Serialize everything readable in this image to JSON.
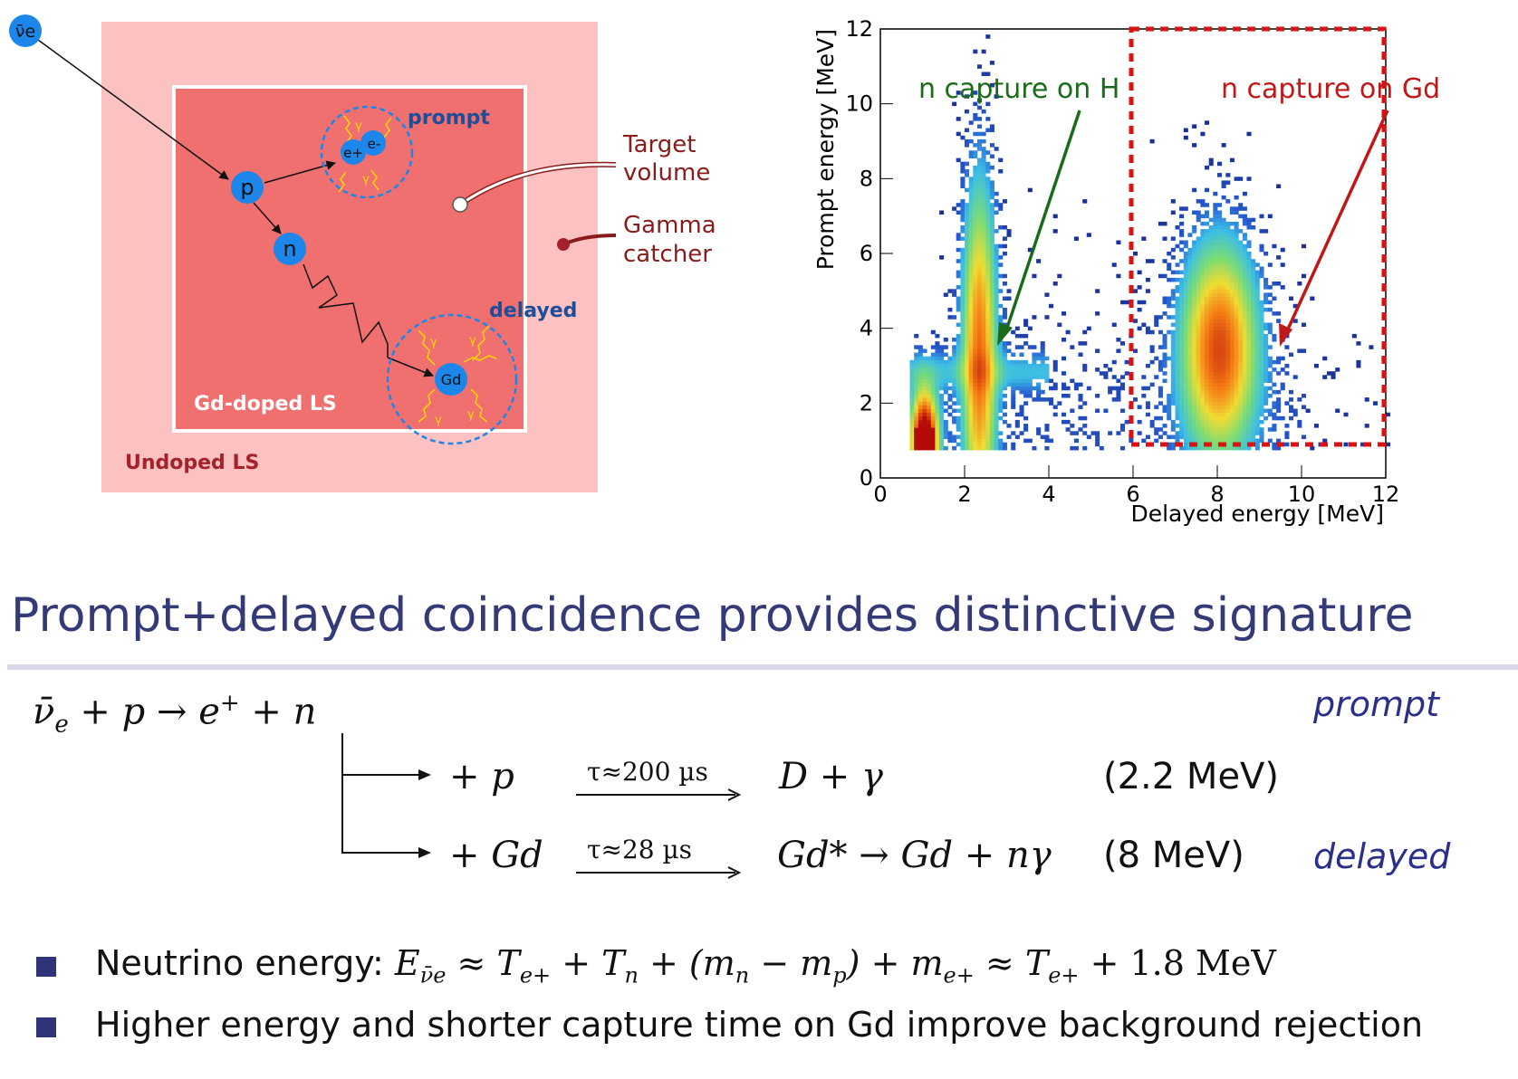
{
  "diagram": {
    "antineutrino_label": "ν̄e",
    "proton_label": "p",
    "neutron_label": "n",
    "gd_label": "Gd",
    "positron_label": "e+",
    "electron_label": "e-",
    "gamma_symbol": "γ",
    "prompt_label": "prompt",
    "delayed_label": "delayed",
    "gd_doped_label": "Gd-doped LS",
    "undoped_label": "Undoped LS",
    "target_volume_label_1": "Target",
    "target_volume_label_2": "volume",
    "gamma_catcher_label_1": "Gamma",
    "gamma_catcher_label_2": "catcher",
    "colors": {
      "outer_region": "#fcc1c1",
      "inner_region": "#f06f6f",
      "particle": "#1c86ea",
      "label_blue": "#1f4e99",
      "label_darkred": "#8a1b1b"
    }
  },
  "plot": {
    "x_label": "Delayed energy [MeV]",
    "y_label": "Prompt energy [MeV]",
    "annotation_h": "n capture on H",
    "annotation_gd": "n capture on Gd",
    "x_ticks": [
      "0",
      "2",
      "4",
      "6",
      "8",
      "10",
      "12"
    ],
    "y_ticks": [
      "0",
      "2",
      "4",
      "6",
      "8",
      "10",
      "12"
    ],
    "colors": {
      "h_annotation": "#1a6b1a",
      "gd_annotation": "#c01818",
      "gd_box": "#dd1111"
    }
  },
  "chart_data": {
    "type": "heatmap",
    "title": "",
    "xlabel": "Delayed energy [MeV]",
    "ylabel": "Prompt energy [MeV]",
    "xlim": [
      0,
      12
    ],
    "ylim": [
      0,
      12
    ],
    "grid": false,
    "annotations": [
      {
        "text": "n capture on H",
        "arrow_to": [
          2.3,
          3.6
        ]
      },
      {
        "text": "n capture on Gd",
        "arrow_to": [
          8.0,
          3.6
        ]
      }
    ],
    "selection_box": {
      "x": [
        6,
        12
      ],
      "y": [
        0.75,
        12
      ]
    },
    "clusters": [
      {
        "name": "n capture on H",
        "x_center": 2.3,
        "x_sigma": 0.25,
        "y_range": [
          0.75,
          8.5
        ]
      },
      {
        "name": "n capture on Gd",
        "x_center": 8.0,
        "x_sigma": 0.55,
        "y_range": [
          0.75,
          8.0
        ]
      },
      {
        "name": "low energy background",
        "x_center": 1.0,
        "x_sigma": 0.2,
        "y_range": [
          0.75,
          3.0
        ]
      }
    ]
  },
  "heading": "Prompt+delayed coincidence provides distinctive signature",
  "reaction": {
    "main_lhs": "ν̄",
    "main_sub": "e",
    "main_rest": " + p → e",
    "main_sup": "+",
    "main_tail": " + n",
    "prompt_tag": "prompt",
    "branch1_capture": "+ p",
    "branch1_tau": "τ≈200 µs",
    "branch1_product": "D + γ",
    "branch1_energy": "(2.2 MeV)",
    "branch2_capture": "+ Gd",
    "branch2_tau": "τ≈28 µs",
    "branch2_product": "Gd* → Gd + nγ",
    "branch2_energy": "(8 MeV)",
    "delayed_tag": "delayed"
  },
  "bullets": {
    "b1_prefix": "Neutrino energy:",
    "b1_formula": "E",
    "b1_formula_sub": "ν̄e",
    "b1_formula_rest": " ≈ T",
    "b1_sub1": "e+",
    "b1_rest2": " + T",
    "b1_sub2": "n",
    "b1_rest3": " + (m",
    "b1_sub3": "n",
    "b1_rest4": " − m",
    "b1_sub4": "p",
    "b1_rest5": ") + m",
    "b1_sub5": "e+",
    "b1_rest6": " ≈ T",
    "b1_sub6": "e+",
    "b1_rest7": " + 1.8 MeV",
    "b2": "Higher energy and shorter capture time on Gd improve background rejection"
  }
}
